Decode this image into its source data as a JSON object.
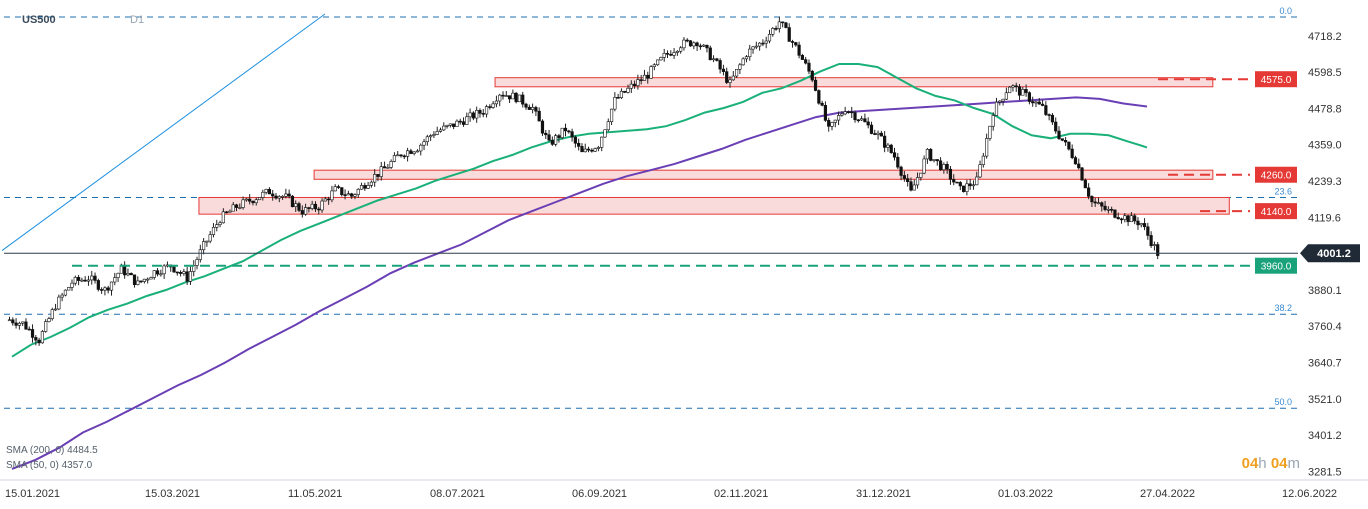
{
  "header": {
    "symbol": "US500",
    "timeframe": "D1"
  },
  "legend": {
    "sma200": "SMA (200, 0) 4484.5",
    "sma50": "SMA (50, 0) 4357.0"
  },
  "timer": {
    "hours": "04",
    "h": "h",
    "minutes": "04",
    "m": "m"
  },
  "colors": {
    "resistance": "#e53935",
    "support": "#1aa37a",
    "sma50": "#1ab07a",
    "sma200": "#6a3fb5",
    "fib": "#1e6fb0",
    "trendline": "#1e90e0",
    "last": "#2d3a48"
  },
  "chart_data": {
    "type": "candlestick",
    "y_ticks": [
      4718.2,
      4598.5,
      4478.8,
      4359.0,
      4239.3,
      4119.6,
      3880.1,
      3760.4,
      3640.7,
      3521.0,
      3401.2,
      3281.5
    ],
    "ylim": [
      3260,
      4790
    ],
    "x_ticks": [
      "15.01.2021",
      "15.03.2021",
      "11.05.2021",
      "08.07.2021",
      "06.09.2021",
      "02.11.2021",
      "31.12.2021",
      "01.03.2022",
      "27.04.2022",
      "12.06.2022"
    ],
    "last_price": 4001.2,
    "levels": [
      {
        "label": "4575.0",
        "value": 4575.0,
        "kind": "resistance"
      },
      {
        "label": "4260.0",
        "value": 4260.0,
        "kind": "resistance"
      },
      {
        "label": "4140.0",
        "value": 4140.0,
        "kind": "resistance"
      },
      {
        "label": "3960.0",
        "value": 3960.0,
        "kind": "support"
      }
    ],
    "fib_levels": [
      {
        "label": "0.0",
        "value": 4780
      },
      {
        "label": "23.6",
        "value": 4185
      },
      {
        "label": "38.2",
        "value": 3800
      },
      {
        "label": "50.0",
        "value": 3490
      }
    ],
    "zones": [
      {
        "from": 4550,
        "to": 4580,
        "start_week": 29,
        "end_week": 73
      },
      {
        "from": 4245,
        "to": 4275,
        "start_week": 18,
        "end_week": 73
      },
      {
        "from": 4130,
        "to": 4185,
        "start_week": 11,
        "end_week": 74
      }
    ],
    "weekly_close": [
      3770,
      3715,
      3830,
      3905,
      3920,
      3880,
      3950,
      3900,
      3940,
      3960,
      3920,
      4025,
      4115,
      4155,
      4180,
      4205,
      4185,
      4140,
      4155,
      4210,
      4190,
      4240,
      4280,
      4330,
      4350,
      4400,
      4420,
      4445,
      4470,
      4530,
      4515,
      4480,
      4360,
      4410,
      4330,
      4360,
      4505,
      4550,
      4590,
      4650,
      4690,
      4700,
      4640,
      4560,
      4660,
      4700,
      4765,
      4680,
      4580,
      4405,
      4480,
      4440,
      4390,
      4320,
      4200,
      4330,
      4280,
      4210,
      4240,
      4470,
      4555,
      4520,
      4480,
      4390,
      4310,
      4170,
      4140,
      4120,
      4100,
      4001
    ],
    "sma50_weekly": [
      3660,
      3700,
      3725,
      3755,
      3790,
      3815,
      3835,
      3860,
      3880,
      3905,
      3925,
      3950,
      3975,
      4010,
      4045,
      4075,
      4100,
      4125,
      4150,
      4175,
      4195,
      4215,
      4240,
      4260,
      4280,
      4305,
      4325,
      4350,
      4370,
      4385,
      4395,
      4400,
      4405,
      4410,
      4420,
      4440,
      4465,
      4480,
      4500,
      4530,
      4545,
      4570,
      4600,
      4625,
      4625,
      4615,
      4580,
      4545,
      4520,
      4505,
      4480,
      4460,
      4420,
      4390,
      4380,
      4395,
      4395,
      4390,
      4370,
      4350
    ],
    "sma200_weekly": [
      3290,
      3320,
      3360,
      3410,
      3445,
      3485,
      3525,
      3565,
      3600,
      3640,
      3685,
      3725,
      3765,
      3810,
      3850,
      3890,
      3935,
      3970,
      4000,
      4030,
      4070,
      4110,
      4140,
      4170,
      4200,
      4230,
      4255,
      4275,
      4295,
      4320,
      4345,
      4375,
      4400,
      4425,
      4450,
      4465,
      4470,
      4475,
      4480,
      4485,
      4490,
      4495,
      4500,
      4505,
      4510,
      4515,
      4510,
      4495,
      4485
    ]
  }
}
